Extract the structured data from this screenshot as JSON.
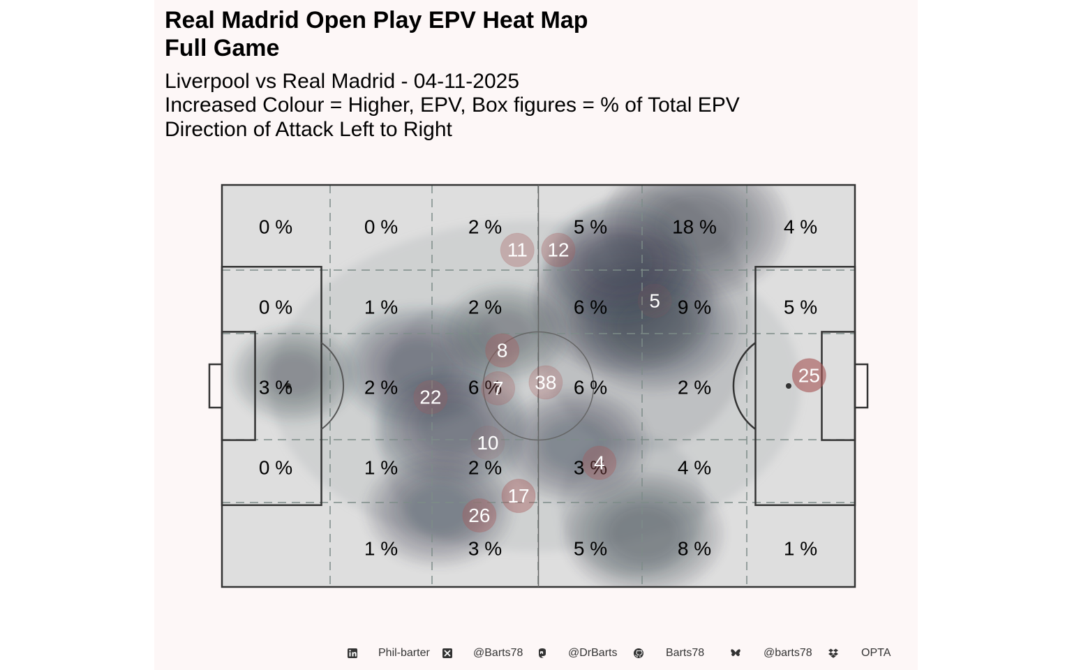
{
  "title": {
    "line1": "Real Madrid  Open Play EPV Heat Map",
    "line2": "Full Game"
  },
  "subtitle": {
    "line1": "Liverpool vs Real Madrid - 04-11-2025",
    "line2": "Increased Colour = Higher, EPV, Box figures = % of Total EPV",
    "line3": "Direction of Attack Left to Right"
  },
  "colors": {
    "panel": "#fdf7f7",
    "pitch": "#dedede",
    "lines": "#333333",
    "density": "#3d4550",
    "player_dot": "#a85a5a"
  },
  "chart_data": {
    "type": "heatmap",
    "pitch": {
      "length": 105,
      "width": 68
    },
    "zones": {
      "columns": 6,
      "rows": 5,
      "rows_top_to_bottom": [
        [
          "0 %",
          "0 %",
          "2 %",
          "5 %",
          "18 %",
          "4 %"
        ],
        [
          "0 %",
          "1 %",
          "2 %",
          "6 %",
          "9 %",
          "5 %"
        ],
        [
          "3 %",
          "2 %",
          "6 %",
          "6 %",
          "2 %",
          ""
        ],
        [
          "0 %",
          "1 %",
          "2 %",
          "3 %",
          "4 %",
          ""
        ],
        [
          "",
          "1 %",
          "3 %",
          "5 %",
          "8 %",
          "1 %"
        ]
      ]
    },
    "players": [
      {
        "number": "11",
        "x": 49,
        "y": 57,
        "epv": 0.3
      },
      {
        "number": "12",
        "x": 55.8,
        "y": 57,
        "epv": 0.3
      },
      {
        "number": "8",
        "x": 46.5,
        "y": 40,
        "epv": 0.35
      },
      {
        "number": "5",
        "x": 71.8,
        "y": 48.4,
        "epv": 0.0
      },
      {
        "number": "38",
        "x": 53.7,
        "y": 34.6,
        "epv": 0.25
      },
      {
        "number": "7",
        "x": 45.8,
        "y": 33.6,
        "epv": 0.25
      },
      {
        "number": "22",
        "x": 34.6,
        "y": 32.1,
        "epv": 0.2
      },
      {
        "number": "25",
        "x": 97.4,
        "y": 35.8,
        "epv": 0.8
      },
      {
        "number": "10",
        "x": 44.1,
        "y": 24.4,
        "epv": 0.0
      },
      {
        "number": "4",
        "x": 62.6,
        "y": 21,
        "epv": 0.35
      },
      {
        "number": "17",
        "x": 49.2,
        "y": 15.4,
        "epv": 0.45
      },
      {
        "number": "26",
        "x": 42.7,
        "y": 12.1,
        "epv": 0.4
      }
    ],
    "density_peaks": [
      {
        "x": 78.5,
        "y": 61,
        "weight": 1.0
      },
      {
        "x": 66.5,
        "y": 48,
        "weight": 0.95
      },
      {
        "x": 71.5,
        "y": 44,
        "weight": 0.8
      },
      {
        "x": 66,
        "y": 55,
        "weight": 0.6
      },
      {
        "x": 32.6,
        "y": 37.3,
        "weight": 0.65
      },
      {
        "x": 38,
        "y": 27,
        "weight": 0.6
      },
      {
        "x": 36,
        "y": 13,
        "weight": 0.55
      },
      {
        "x": 70,
        "y": 9,
        "weight": 0.7
      },
      {
        "x": 58.5,
        "y": 24,
        "weight": 0.55
      },
      {
        "x": 12,
        "y": 36,
        "weight": 0.3
      },
      {
        "x": 47,
        "y": 43,
        "weight": 0.3
      }
    ],
    "direction_of_attack": "left-to-right"
  },
  "footer": {
    "items": [
      {
        "icon": "linkedin-icon",
        "label": "Phil-barter"
      },
      {
        "icon": "x-icon",
        "label": "@Barts78"
      },
      {
        "icon": "mastodon-icon",
        "label": "@DrBarts"
      },
      {
        "icon": "github-icon",
        "label": "Barts78"
      },
      {
        "icon": "bluesky-icon",
        "label": "@barts78"
      },
      {
        "icon": "dropbox-icon",
        "label": "OPTA"
      }
    ]
  }
}
